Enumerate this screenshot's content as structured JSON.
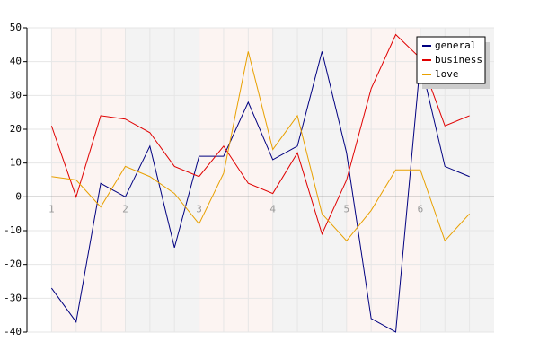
{
  "chart_data": {
    "type": "line",
    "categories": [
      "1",
      null,
      null,
      "2",
      null,
      null,
      "3",
      null,
      null,
      "4",
      null,
      null,
      "5",
      null,
      null,
      "6",
      null,
      null
    ],
    "series": [
      {
        "name": "general",
        "color": "#000080",
        "values": [
          -27,
          -37,
          4,
          0,
          15,
          -15,
          12,
          12,
          28,
          11,
          15,
          43,
          13,
          -36,
          -40,
          40,
          9,
          6
        ]
      },
      {
        "name": "business",
        "color": "#e00000",
        "values": [
          21,
          0,
          24,
          23,
          19,
          9,
          6,
          15,
          4,
          1,
          13,
          -11,
          5,
          32,
          48,
          41,
          21,
          24
        ]
      },
      {
        "name": "love",
        "color": "#e8a000",
        "values": [
          6,
          5,
          -3,
          9,
          6,
          1,
          -8,
          7,
          43,
          14,
          24,
          -5,
          -13,
          -4,
          8,
          8,
          -13,
          -5
        ]
      }
    ],
    "ylim": [
      -40,
      50
    ],
    "yticks": [
      -40,
      -30,
      -20,
      -10,
      0,
      10,
      20,
      30,
      40,
      50
    ],
    "grid": true,
    "legend": "top-right"
  }
}
